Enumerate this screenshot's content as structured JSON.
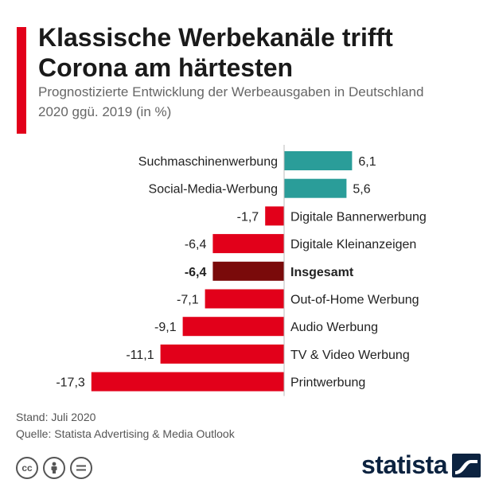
{
  "header": {
    "title": "Klassische Werbekanäle trifft Corona am härtesten",
    "subtitle": "Prognostizierte Entwicklung der Werbeausgaben in Deutschland 2020 ggü. 2019 (in %)"
  },
  "chart_data": {
    "type": "bar",
    "orientation": "horizontal",
    "categories": [
      "Suchmaschinenwerbung",
      "Social-Media-Werbung",
      "Digitale Bannerwerbung",
      "Digitale Kleinanzeigen",
      "Insgesamt",
      "Out-of-Home Werbung",
      "Audio Werbung",
      "TV & Video Werbung",
      "Printwerbung"
    ],
    "values": [
      6.1,
      5.6,
      -1.7,
      -6.4,
      -6.4,
      -7.1,
      -9.1,
      -11.1,
      -17.3
    ],
    "value_labels": [
      "6,1",
      "5,6",
      "-1,7",
      "-6,4",
      "-6,4",
      "-7,1",
      "-9,1",
      "-11,1",
      "-17,3"
    ],
    "highlight": "Insgesamt",
    "colors": {
      "positive": "#2a9d99",
      "negative": "#e2001a",
      "highlight": "#7a0a0a",
      "axis": "#bbbbbb"
    }
  },
  "footer": {
    "stand": "Stand: Juli 2020",
    "quelle": "Quelle: Statista Advertising & Media Outlook"
  },
  "license_icons": [
    "cc-icon",
    "by-icon",
    "nd-icon"
  ],
  "brand": {
    "name": "statista",
    "color": "#0c2340"
  }
}
